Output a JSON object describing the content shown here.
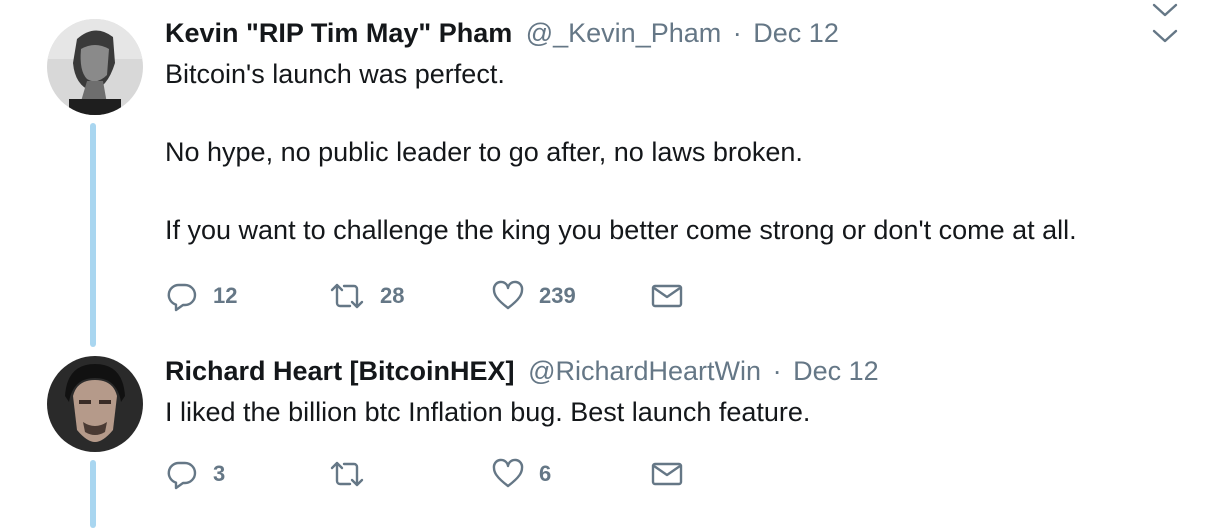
{
  "tweets": [
    {
      "name": "Kevin \"RIP Tim May\" Pham",
      "handle": "@_Kevin_Pham",
      "separator": "·",
      "date": "Dec 12",
      "paragraphs": [
        "Bitcoin's launch was perfect.",
        "No hype, no public leader to go after, no laws broken.",
        "If you want to challenge the king you better come strong or don't come at all."
      ],
      "replies": "12",
      "retweets": "28",
      "likes": "239"
    },
    {
      "name": "Richard Heart [BitcoinHEX]",
      "handle": "@RichardHeartWin",
      "separator": "·",
      "date": "Dec 12",
      "paragraphs": [
        "I liked the billion btc Inflation bug. Best launch feature."
      ],
      "replies": "3",
      "retweets": "",
      "likes": "6"
    }
  ],
  "icons": {
    "reply": "reply-icon",
    "retweet": "retweet-icon",
    "like": "heart-icon",
    "dm": "envelope-icon",
    "menu": "chevron-down-icon"
  },
  "colors": {
    "thread_line": "#a9d6f0",
    "secondary_text": "#657786",
    "primary_text": "#14171a"
  }
}
